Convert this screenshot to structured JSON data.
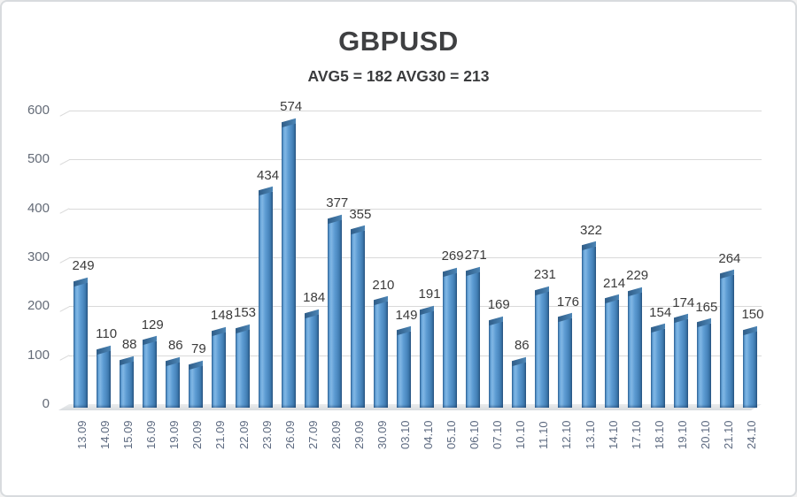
{
  "chart_data": {
    "type": "bar",
    "style": "3d-column",
    "title": "GBPUSD",
    "subtitle": "AVG5 = 182 AVG30 = 213",
    "avg5": 182,
    "avg30": 213,
    "categories": [
      "13.09",
      "14.09",
      "15.09",
      "16.09",
      "19.09",
      "20.09",
      "21.09",
      "22.09",
      "23.09",
      "26.09",
      "27.09",
      "28.09",
      "29.09",
      "30.09",
      "03.10",
      "04.10",
      "05.10",
      "06.10",
      "07.10",
      "10.10",
      "11.10",
      "12.10",
      "13.10",
      "14.10",
      "17.10",
      "18.10",
      "19.10",
      "20.10",
      "21.10",
      "24.10"
    ],
    "values": [
      249,
      110,
      88,
      129,
      86,
      79,
      148,
      153,
      434,
      574,
      184,
      377,
      355,
      210,
      149,
      191,
      269,
      271,
      169,
      86,
      231,
      176,
      322,
      214,
      229,
      154,
      174,
      165,
      264,
      150
    ],
    "xlabel": "",
    "ylabel": "",
    "ylim": [
      0,
      600
    ],
    "yticks": [
      0,
      100,
      200,
      300,
      400,
      500,
      600
    ],
    "grid": true,
    "legend": false,
    "value_labels": true,
    "colors": {
      "bar_main": "#5b9bd5",
      "bar_highlight": "#80b6e4",
      "bar_shadow": "#2a5784",
      "bar_top_face": "#3a6da0",
      "gridline": "#d9d9d9",
      "value_label_text": "#3b3b3b",
      "axis_label_text": "#5d6a80",
      "title_text": "#3f4042"
    }
  }
}
